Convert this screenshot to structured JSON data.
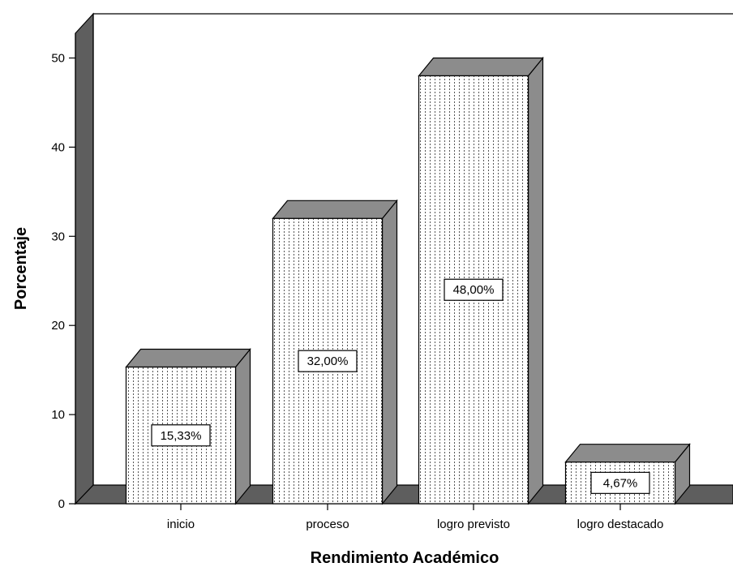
{
  "chart_data": {
    "type": "bar",
    "title": "",
    "xlabel": "Rendimiento Académico",
    "ylabel": "Porcentaje",
    "categories": [
      "inicio",
      "proceso",
      "logro previsto",
      "logro destacado"
    ],
    "values": [
      15.33,
      32.0,
      48.0,
      4.67
    ],
    "data_labels": [
      "15,33%",
      "32,00%",
      "48,00%",
      "4,67%"
    ],
    "y_ticks": [
      "0",
      "10",
      "20",
      "30",
      "40",
      "50"
    ],
    "ylim": [
      0,
      54.5
    ],
    "grid": false,
    "legend": "none",
    "style": "3d",
    "colors": {
      "bar_front": "#ffffff",
      "bar_pattern": "#555555",
      "bar_top": "#8c8c8c",
      "bar_side": "#8c8c8c",
      "wall": "#5e5e5e",
      "outline": "#000000"
    }
  }
}
